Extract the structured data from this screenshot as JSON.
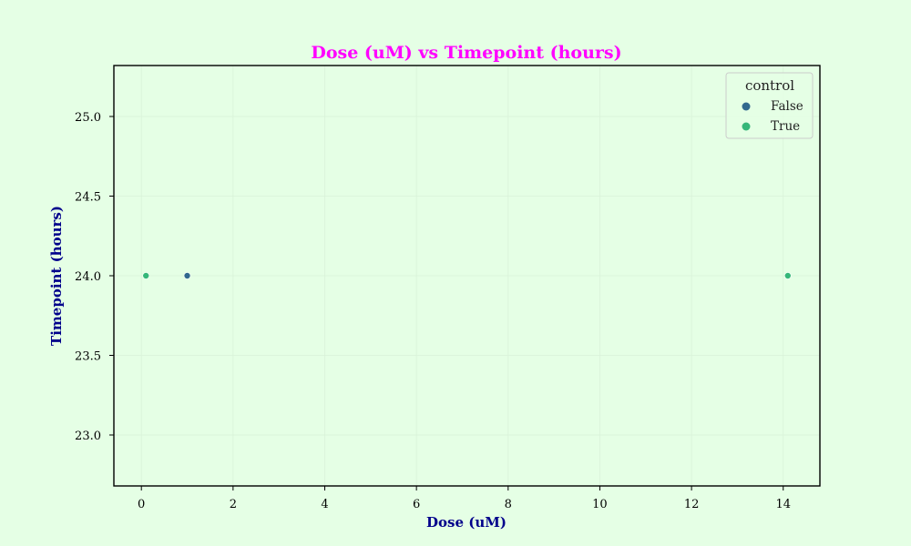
{
  "chart_data": {
    "type": "scatter",
    "title": "Dose (uM) vs Timepoint (hours)",
    "xlabel": "Dose (uM)",
    "ylabel": "Timepoint (hours)",
    "xlim": [
      -0.6,
      14.8
    ],
    "ylim": [
      22.68,
      25.32
    ],
    "x_ticks": [
      0,
      2,
      4,
      6,
      8,
      10,
      12,
      14
    ],
    "y_ticks": [
      23.0,
      23.5,
      24.0,
      24.5,
      25.0
    ],
    "x_tick_labels": [
      "0",
      "2",
      "4",
      "6",
      "8",
      "10",
      "12",
      "14"
    ],
    "y_tick_labels": [
      "23.0",
      "23.5",
      "24.0",
      "24.5",
      "25.0"
    ],
    "grid": true,
    "legend": {
      "title": "control",
      "placement": "top-right",
      "entries": [
        "False",
        "True"
      ]
    },
    "series": [
      {
        "name": "False",
        "color": "#31688e",
        "points": [
          {
            "x": 1.0,
            "y": 24.0
          }
        ]
      },
      {
        "name": "True",
        "color": "#35b779",
        "points": [
          {
            "x": 0.1,
            "y": 24.0
          },
          {
            "x": 14.1,
            "y": 24.0
          }
        ]
      }
    ]
  },
  "colors": {
    "background": "#e5ffe5",
    "title": "#ff00ff",
    "axis_label": "#00008b",
    "axes": "#000000",
    "grid": "#d9f2d9"
  }
}
